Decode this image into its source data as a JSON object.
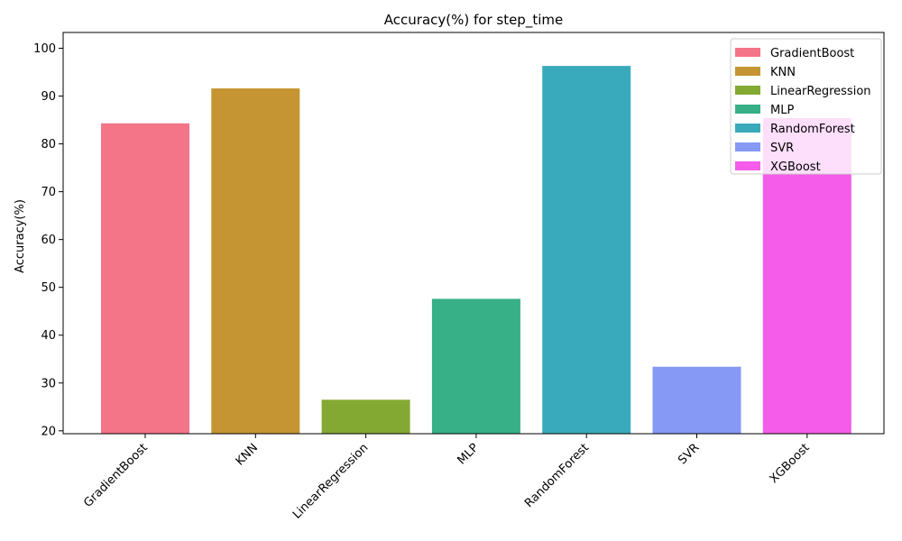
{
  "chart_data": {
    "type": "bar",
    "title": "Accuracy(%) for step_time",
    "xlabel": "",
    "ylabel": "Accuracy(%)",
    "categories": [
      "GradientBoost",
      "KNN",
      "LinearRegression",
      "MLP",
      "RandomForest",
      "SVR",
      "XGBoost"
    ],
    "values": [
      84.3,
      91.6,
      26.5,
      47.6,
      96.3,
      33.4,
      85.4
    ],
    "colors": [
      "#f47488",
      "#c59533",
      "#84a932",
      "#37af87",
      "#39aabc",
      "#8599f5",
      "#f45ce9"
    ],
    "ylim": [
      19.4,
      103.3
    ],
    "yticks": [
      20,
      30,
      40,
      50,
      60,
      70,
      80,
      90,
      100
    ],
    "grid": false,
    "legend": {
      "placement": "top-right",
      "entries": [
        "GradientBoost",
        "KNN",
        "LinearRegression",
        "MLP",
        "RandomForest",
        "SVR",
        "XGBoost"
      ]
    }
  }
}
